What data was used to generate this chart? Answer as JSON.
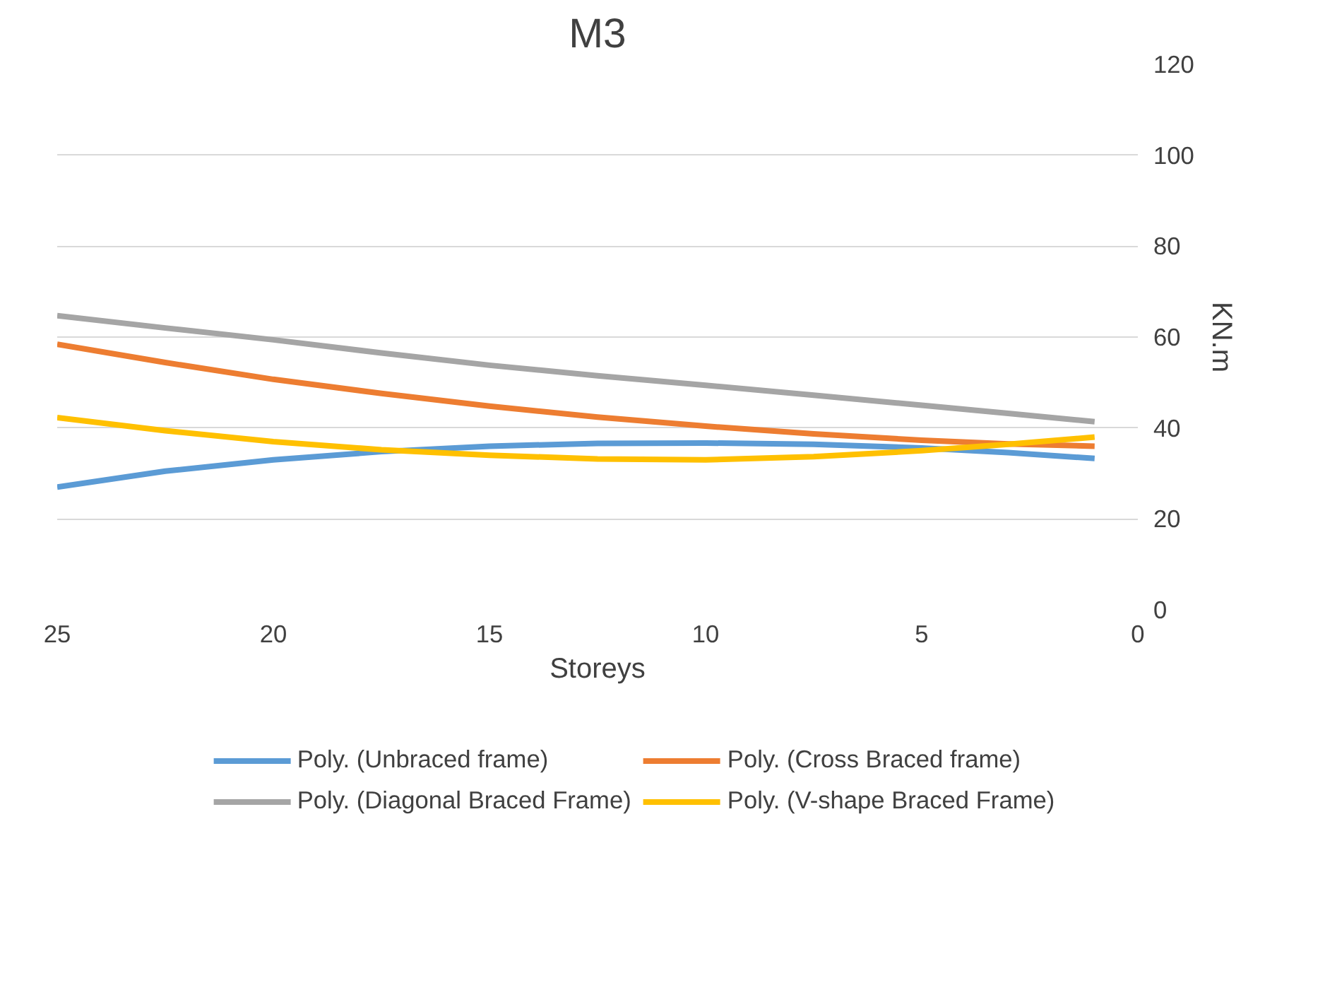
{
  "chart_data": {
    "type": "line",
    "title": "M3",
    "xlabel": "Storeys",
    "ylabel": "KN.m",
    "x": [
      25,
      22.5,
      20,
      17.5,
      15,
      12.5,
      10,
      7.5,
      5,
      3,
      1
    ],
    "xlim": [
      25,
      0
    ],
    "xticks": [
      25,
      20,
      15,
      10,
      5,
      0
    ],
    "ylim": [
      0,
      120
    ],
    "yticks": [
      0,
      20,
      40,
      60,
      80,
      100,
      120
    ],
    "grid": "y",
    "legend": "bottom",
    "marker": "none",
    "line_style": "solid",
    "series": [
      {
        "name": "Poly. (Unbraced frame)",
        "color": "#5b9bd5",
        "values": [
          27,
          30.5,
          33,
          34.8,
          36,
          36.6,
          36.7,
          36.4,
          35.6,
          34.6,
          33.3
        ]
      },
      {
        "name": "Poly. (Cross Braced frame)",
        "color": "#ed7d31",
        "values": [
          58.4,
          54.4,
          50.7,
          47.6,
          44.8,
          42.4,
          40.4,
          38.7,
          37.3,
          36.5,
          36
        ]
      },
      {
        "name": "Poly. (Diagonal Braced Frame)",
        "color": "#a5a5a5",
        "values": [
          64.7,
          62,
          59.4,
          56.5,
          53.8,
          51.5,
          49.4,
          47.2,
          45,
          43.2,
          41.4
        ]
      },
      {
        "name": "Poly. (V-shape Braced Frame)",
        "color": "#ffc000",
        "values": [
          42.3,
          39.4,
          37,
          35.2,
          34,
          33.2,
          33,
          33.7,
          35,
          36.4,
          38
        ]
      }
    ]
  }
}
